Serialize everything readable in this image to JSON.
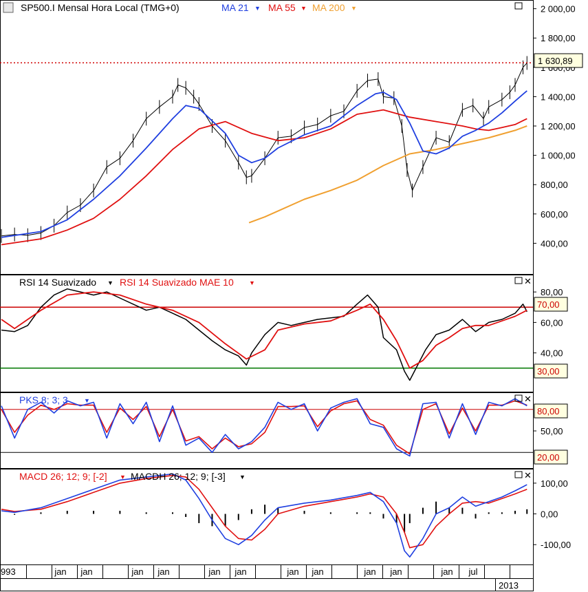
{
  "main": {
    "symbol_label": "SP500.I Mensal Hora Local (TMG+0)",
    "ma21_label": "MA 21",
    "ma55_label": "MA 55",
    "ma200_label": "MA 200",
    "current_price": "1 630,89",
    "y_ticks": [
      "2 000,00",
      "1 800,00",
      "1 600,00",
      "1 400,00",
      "1 200,00",
      "1 000,00",
      "800,00",
      "600,00",
      "400,00"
    ]
  },
  "rsi": {
    "label": "RSI 14 Suavizado",
    "ma_label": "RSI 14 Suavizado MAE 10",
    "y_ticks": [
      "80,00",
      "60,00",
      "40,00"
    ],
    "upper_level": "70,00",
    "lower_level": "30,00"
  },
  "stoch": {
    "label": "PKS 8; 3; 3",
    "y_ticks": [
      "50,00"
    ],
    "upper_level": "80,00",
    "lower_level": "20,00"
  },
  "macd": {
    "label": "MACD 26; 12; 9; [-2]",
    "hist_label": "MACDH 26; 12; 9; [-3]",
    "y_ticks": [
      "100,00",
      "0,00",
      "-100,00"
    ]
  },
  "x_axis": {
    "first_label": "993",
    "month_labels": [
      "jan",
      "jan",
      "jan",
      "jan",
      "jan",
      "jan",
      "jan",
      "jan",
      "jan",
      "jan",
      "jan",
      "jul"
    ],
    "year_label": "2013"
  },
  "colors": {
    "ma21": "#1f3fe0",
    "ma55": "#e01010",
    "ma200": "#f0a030",
    "price_line": "#d00000",
    "rsi": "#000000",
    "rsi_ma": "#e01010",
    "upper_band": "#cc0000",
    "lower_band": "#007700",
    "stoch_k": "#1f3fe0",
    "stoch_d": "#e01010",
    "macd": "#1f3fe0",
    "macd_signal": "#e01010",
    "macd_hist": "#000000"
  },
  "chart_data": {
    "type": "line",
    "x_range": [
      1993.5,
      2013.6
    ],
    "y_range": [
      200,
      2050
    ],
    "price": {
      "x": [
        1993.5,
        1994,
        1994.5,
        1995,
        1995.5,
        1996,
        1996.5,
        1997,
        1997.5,
        1998,
        1998.5,
        1999,
        1999.5,
        2000,
        2000.2,
        2000.5,
        2000.8,
        2001,
        2001.5,
        2002,
        2002.5,
        2002.8,
        2003,
        2003.5,
        2004,
        2004.5,
        2005,
        2005.5,
        2006,
        2006.5,
        2007,
        2007.4,
        2007.8,
        2008,
        2008.4,
        2008.7,
        2008.9,
        2009.1,
        2009.5,
        2010,
        2010.5,
        2011,
        2011.4,
        2011.8,
        2012,
        2012.5,
        2012.8,
        2013,
        2013.3,
        2013.45
      ],
      "y": [
        450,
        460,
        455,
        470,
        520,
        610,
        660,
        760,
        920,
        980,
        1100,
        1250,
        1330,
        1400,
        1480,
        1460,
        1400,
        1350,
        1200,
        1100,
        950,
        850,
        860,
        980,
        1120,
        1130,
        1190,
        1210,
        1270,
        1300,
        1440,
        1510,
        1520,
        1400,
        1390,
        1200,
        900,
        760,
        920,
        1120,
        1090,
        1310,
        1340,
        1250,
        1330,
        1380,
        1430,
        1480,
        1600,
        1630
      ]
    },
    "ma21": {
      "x": [
        1993.5,
        1995,
        1996,
        1997,
        1998,
        1999,
        2000,
        2000.5,
        2001,
        2002,
        2002.5,
        2003,
        2003.5,
        2004,
        2005,
        2006,
        2007,
        2007.7,
        2008,
        2008.5,
        2009,
        2009.5,
        2010,
        2010.5,
        2011,
        2011.5,
        2012,
        2012.5,
        2013,
        2013.45
      ],
      "y": [
        440,
        480,
        560,
        700,
        860,
        1050,
        1250,
        1340,
        1320,
        1150,
        1000,
        950,
        980,
        1050,
        1140,
        1200,
        1340,
        1420,
        1430,
        1380,
        1220,
        1030,
        1010,
        1050,
        1130,
        1170,
        1220,
        1290,
        1370,
        1440
      ]
    },
    "ma55": {
      "x": [
        1993.5,
        1995,
        1996,
        1997,
        1998,
        1999,
        2000,
        2001,
        2002,
        2003,
        2004,
        2005,
        2006,
        2007,
        2008,
        2009,
        2010,
        2011,
        2011.5,
        2012,
        2012.5,
        2013,
        2013.45
      ],
      "y": [
        390,
        430,
        490,
        570,
        700,
        860,
        1040,
        1180,
        1230,
        1150,
        1100,
        1120,
        1180,
        1280,
        1310,
        1260,
        1230,
        1200,
        1180,
        1170,
        1190,
        1210,
        1250
      ]
    },
    "ma200": {
      "x": [
        2002.9,
        2003.5,
        2004,
        2005,
        2006,
        2007,
        2008,
        2009,
        2010,
        2011,
        2012,
        2013,
        2013.45
      ],
      "y": [
        540,
        580,
        620,
        700,
        760,
        830,
        930,
        1010,
        1040,
        1080,
        1120,
        1170,
        1200
      ]
    },
    "rsi_range": [
      15,
      90
    ],
    "rsi": {
      "x": [
        1993.5,
        1994,
        1994.5,
        1995,
        1995.5,
        1996,
        1996.5,
        1997,
        1997.5,
        1998,
        1998.5,
        1999,
        1999.5,
        2000,
        2000.5,
        2001,
        2001.5,
        2002,
        2002.5,
        2002.8,
        2003,
        2003.5,
        2004,
        2004.5,
        2005,
        2005.5,
        2006,
        2006.5,
        2007,
        2007.4,
        2007.8,
        2008,
        2008.5,
        2008.8,
        2009,
        2009.3,
        2009.6,
        2010,
        2010.5,
        2011,
        2011.5,
        2012,
        2012.5,
        2013,
        2013.3,
        2013.45
      ],
      "y": [
        55,
        54,
        58,
        70,
        78,
        82,
        80,
        78,
        80,
        76,
        72,
        68,
        70,
        66,
        62,
        55,
        48,
        42,
        38,
        32,
        40,
        52,
        60,
        58,
        60,
        62,
        63,
        64,
        72,
        78,
        70,
        50,
        42,
        28,
        22,
        32,
        42,
        52,
        55,
        62,
        54,
        60,
        62,
        66,
        72,
        67
      ]
    },
    "rsi_ma": {
      "x": [
        1993.5,
        1994,
        1995,
        1996,
        1997,
        1998,
        1999,
        2000,
        2001,
        2002,
        2002.8,
        2003.5,
        2004,
        2005,
        2006,
        2007,
        2007.5,
        2008,
        2008.5,
        2009,
        2009.5,
        2010,
        2010.5,
        2011,
        2011.5,
        2012,
        2012.5,
        2013,
        2013.45
      ],
      "y": [
        62,
        56,
        68,
        78,
        80,
        78,
        72,
        68,
        60,
        46,
        36,
        42,
        55,
        59,
        61,
        68,
        72,
        62,
        48,
        30,
        35,
        45,
        50,
        56,
        58,
        58,
        61,
        64,
        68
      ]
    },
    "stoch_range": [
      0,
      100
    ],
    "stoch_k": {
      "x": [
        1993.5,
        1994,
        1994.5,
        1995,
        1995.5,
        1996,
        1996.5,
        1997,
        1997.5,
        1998,
        1998.5,
        1999,
        1999.5,
        2000,
        2000.5,
        2001,
        2001.5,
        2002,
        2002.5,
        2003,
        2003.5,
        2004,
        2004.5,
        2005,
        2005.5,
        2006,
        2006.5,
        2007,
        2007.5,
        2008,
        2008.5,
        2009,
        2009.5,
        2010,
        2010.5,
        2011,
        2011.5,
        2012,
        2012.5,
        2013,
        2013.45
      ],
      "y": [
        85,
        40,
        80,
        90,
        75,
        92,
        85,
        90,
        40,
        88,
        60,
        90,
        35,
        85,
        30,
        40,
        20,
        45,
        25,
        35,
        55,
        90,
        80,
        88,
        50,
        82,
        90,
        95,
        60,
        55,
        25,
        15,
        88,
        90,
        40,
        88,
        45,
        90,
        85,
        95,
        85
      ]
    },
    "stoch_d": {
      "x": [
        1993.5,
        1994,
        1994.5,
        1995,
        1995.5,
        1996,
        1996.5,
        1997,
        1997.5,
        1998,
        1998.5,
        1999,
        1999.5,
        2000,
        2000.5,
        2001,
        2001.5,
        2002,
        2002.5,
        2003,
        2003.5,
        2004,
        2004.5,
        2005,
        2005.5,
        2006,
        2006.5,
        2007,
        2007.5,
        2008,
        2008.5,
        2009,
        2009.5,
        2010,
        2010.5,
        2011,
        2011.5,
        2012,
        2012.5,
        2013,
        2013.45
      ],
      "y": [
        80,
        48,
        72,
        86,
        80,
        88,
        86,
        86,
        48,
        82,
        66,
        84,
        42,
        80,
        36,
        42,
        25,
        40,
        28,
        32,
        48,
        84,
        84,
        85,
        56,
        78,
        88,
        92,
        66,
        58,
        30,
        18,
        80,
        88,
        46,
        82,
        50,
        86,
        86,
        92,
        86
      ]
    },
    "macd_range": [
      -160,
      140
    ],
    "macd": {
      "x": [
        1993.5,
        1994,
        1995,
        1996,
        1997,
        1998,
        1999,
        2000,
        2000.5,
        2001,
        2001.5,
        2002,
        2002.5,
        2003,
        2003.5,
        2004,
        2005,
        2006,
        2007,
        2007.5,
        2008,
        2008.5,
        2008.8,
        2009,
        2009.5,
        2010,
        2010.5,
        2011,
        2011.5,
        2012,
        2012.5,
        2013,
        2013.45
      ],
      "y": [
        10,
        5,
        20,
        50,
        80,
        110,
        120,
        130,
        110,
        50,
        -20,
        -80,
        -100,
        -70,
        -20,
        20,
        35,
        45,
        60,
        70,
        40,
        -30,
        -120,
        -140,
        -80,
        0,
        20,
        55,
        25,
        40,
        55,
        75,
        95
      ]
    },
    "macd_signal": {
      "x": [
        1993.5,
        1994,
        1995,
        1996,
        1997,
        1998,
        1999,
        2000,
        2000.5,
        2001,
        2001.5,
        2002,
        2002.5,
        2003,
        2003.5,
        2004,
        2005,
        2006,
        2007,
        2007.5,
        2008,
        2008.5,
        2008.8,
        2009,
        2009.5,
        2010,
        2010.5,
        2011,
        2011.5,
        2012,
        2012.5,
        2013,
        2013.45
      ],
      "y": [
        15,
        8,
        15,
        40,
        70,
        100,
        115,
        125,
        120,
        80,
        20,
        -40,
        -80,
        -85,
        -50,
        0,
        25,
        40,
        55,
        65,
        55,
        0,
        -60,
        -110,
        -100,
        -40,
        0,
        35,
        40,
        35,
        50,
        65,
        80
      ]
    },
    "macd_hist": {
      "x": [
        1994,
        1995,
        1996,
        1997,
        1998,
        1999,
        2000,
        2000.5,
        2001,
        2001.5,
        2002,
        2002.5,
        2003,
        2003.5,
        2004,
        2005,
        2006,
        2007,
        2007.5,
        2008,
        2008.5,
        2008.8,
        2009,
        2009.5,
        2010,
        2010.5,
        2011,
        2011.5,
        2012,
        2012.5,
        2013,
        2013.45
      ],
      "y": [
        -3,
        5,
        10,
        10,
        10,
        5,
        5,
        -10,
        -30,
        -40,
        -40,
        -20,
        15,
        30,
        20,
        10,
        5,
        5,
        5,
        -15,
        -30,
        -60,
        -30,
        20,
        40,
        20,
        20,
        -15,
        5,
        5,
        10,
        15
      ]
    }
  }
}
